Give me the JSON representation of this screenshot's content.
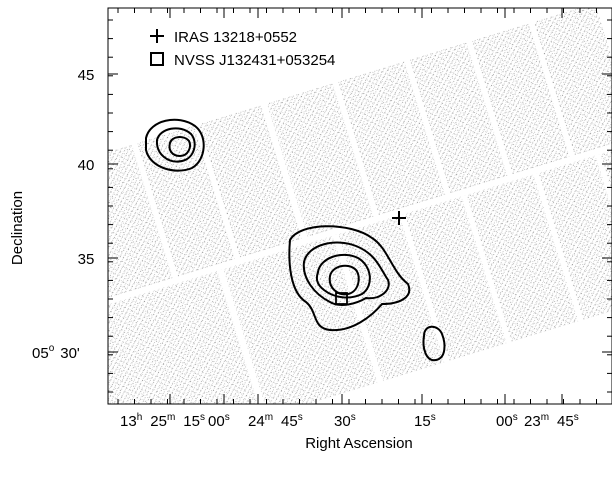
{
  "chart_data": {
    "type": "scatter",
    "title": "",
    "xlabel": "Right Ascension",
    "ylabel": "Declination",
    "x_axis": {
      "ticks": [
        {
          "h": "13",
          "m": "25",
          "s": "15",
          "unit_h": "h",
          "unit_m": "m",
          "unit_s": "s"
        },
        {
          "s": "00",
          "unit_s": "s"
        },
        {
          "m": "24",
          "s": "45",
          "unit_m": "m",
          "unit_s": "s"
        },
        {
          "s": "30",
          "unit_s": "s"
        },
        {
          "s": "15",
          "unit_s": "s"
        },
        {
          "s": "00",
          "unit_s": "s"
        },
        {
          "m": "23",
          "s": "45",
          "unit_m": "m",
          "unit_s": "s"
        }
      ]
    },
    "y_axis": {
      "ticks": [
        {
          "value": "45"
        },
        {
          "value": "40"
        },
        {
          "value": "35"
        },
        {
          "value": "30'",
          "deg": "05",
          "deg_unit": "o"
        }
      ]
    },
    "legend": {
      "placement": "top-left",
      "items": [
        {
          "marker": "plus",
          "label": "IRAS 13218+0552"
        },
        {
          "marker": "square",
          "label": "NVSS J132431+053254"
        }
      ]
    },
    "markers": [
      {
        "name": "IRAS 13218+0552",
        "marker": "plus",
        "ra": "13h24m19s",
        "dec": "+05°37.2'"
      },
      {
        "name": "NVSS J132431+053254",
        "marker": "square",
        "ra": "13h24m31s",
        "dec": "+05°32.9'"
      }
    ],
    "image": {
      "description_type": "x-ray-photon-map",
      "rotation_deg": -17,
      "grid_on": false
    },
    "contours": [
      {
        "label": "contour-northwest",
        "levels": 3
      },
      {
        "label": "contour-center",
        "levels": 4
      },
      {
        "label": "contour-east",
        "levels": 1
      },
      {
        "label": "contour-south",
        "levels": 3
      }
    ],
    "colors": {
      "axes": "#000000",
      "contours": "#000000",
      "image_dots": "#6f6f6f",
      "background": "#ffffff"
    }
  }
}
